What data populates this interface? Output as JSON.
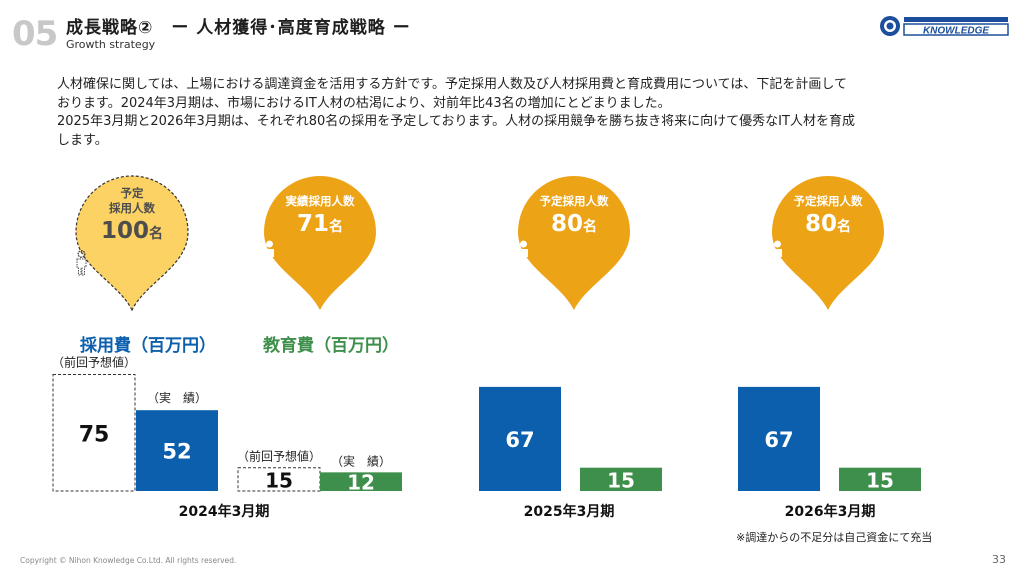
{
  "header": {
    "section_number": "05",
    "title": "成長戦略②　ー 人材獲得･高度育成戦略 ー",
    "subtitle": "Growth strategy",
    "logo_text": "KNOWLEDGE"
  },
  "intro": [
    "人材確保に関しては、上場における調達資金を活用する方針です。予定採用人数及び人材採用費と育成費用については、下記を計画して",
    "おります。2024年3月期は、市場におけるIT人材の枯渇により、対前年比43名の増加にとどまりました。",
    "2025年3月期と2026年3月期は、それぞれ80名の採用を予定しております。人材の採用競争を勝ち抜き将来に向けて優秀なIT人材を育成",
    "します。"
  ],
  "pins": [
    {
      "label_lines": [
        "予定",
        "採用人数"
      ],
      "count": "100",
      "unit": "名",
      "style": "planned",
      "color": "#fcd265",
      "text_color": "#4d4d4d"
    },
    {
      "label_lines": [
        "実績採用人数"
      ],
      "count": "71",
      "unit": "名",
      "style": "actual",
      "color": "#eda316",
      "text_color": "#ffffff"
    },
    {
      "label_lines": [
        "予定採用人数"
      ],
      "count": "80",
      "unit": "名",
      "style": "actual",
      "color": "#eda316",
      "text_color": "#ffffff"
    },
    {
      "label_lines": [
        "予定採用人数"
      ],
      "count": "80",
      "unit": "名",
      "style": "actual",
      "color": "#eda316",
      "text_color": "#ffffff"
    }
  ],
  "legend": {
    "recruiting": "採用費（百万円）",
    "education": "教育費（百万円）"
  },
  "chart_data": {
    "type": "bar",
    "unit": "百万円",
    "categories": [
      "2024年3月期",
      "2025年3月期",
      "2026年3月期"
    ],
    "series": [
      {
        "name": "採用費（百万円）",
        "color": "#0b5fac",
        "values": [
          52,
          67,
          67
        ],
        "previous_forecast": [
          75,
          null,
          null
        ]
      },
      {
        "name": "教育費（百万円）",
        "color": "#3f8f4c",
        "values": [
          12,
          15,
          15
        ],
        "previous_forecast": [
          15,
          null,
          null
        ]
      }
    ],
    "annotations": {
      "previous_forecast": "（前回予想値）",
      "actual": "（実　績）"
    },
    "colors": {
      "forecast_border": "#333333"
    }
  },
  "footer": {
    "note": "※調達からの不足分は自己資金にて充当",
    "copyright": "Copyright © Nihon Knowledge Co.Ltd. All rights reserved.",
    "page": "33"
  }
}
